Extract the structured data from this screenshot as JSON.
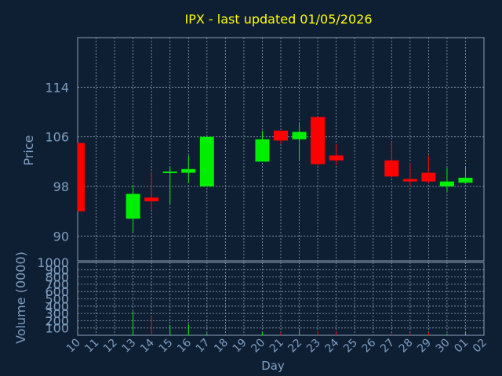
{
  "chart_data": {
    "type": "candlestick",
    "title": "IPX - last updated 01/05/2026",
    "ylabel": "Price",
    "volume_ylabel": "Volume (0000)",
    "xlabel": "Day",
    "ylim": [
      86,
      122
    ],
    "yticks": [
      "90",
      "98",
      "106",
      "114"
    ],
    "volume_ylim": [
      0,
      1000
    ],
    "volume_yticks": [
      "100",
      "200",
      "300",
      "400",
      "500",
      "600",
      "700",
      "800",
      "900",
      "1000"
    ],
    "grid": true,
    "categories": [
      "10",
      "11",
      "12",
      "13",
      "14",
      "15",
      "16",
      "17",
      "18",
      "19",
      "20",
      "21",
      "22",
      "23",
      "24",
      "25",
      "26",
      "27",
      "28",
      "29",
      "30",
      "01",
      "02"
    ],
    "candles": [
      {
        "day": "10",
        "open": 105.0,
        "high": 105.0,
        "low": 94.0,
        "close": 94.0,
        "volume": 0
      },
      {
        "day": "13",
        "open": 92.8,
        "high": 98.2,
        "low": 90.6,
        "close": 96.8,
        "volume": 330
      },
      {
        "day": "14",
        "open": 96.2,
        "high": 100.2,
        "low": 94.2,
        "close": 95.6,
        "volume": 260
      },
      {
        "day": "15",
        "open": 100.2,
        "high": 101.2,
        "low": 95.2,
        "close": 100.4,
        "volume": 140
      },
      {
        "day": "16",
        "open": 100.2,
        "high": 103.0,
        "low": 98.6,
        "close": 100.8,
        "volume": 150
      },
      {
        "day": "17",
        "open": 98.0,
        "high": 106.0,
        "low": 98.0,
        "close": 106.0,
        "volume": 30
      },
      {
        "day": "20",
        "open": 102.0,
        "high": 107.0,
        "low": 102.0,
        "close": 105.6,
        "volume": 40
      },
      {
        "day": "21",
        "open": 107.0,
        "high": 107.0,
        "low": 104.8,
        "close": 105.4,
        "volume": 40
      },
      {
        "day": "22",
        "open": 105.6,
        "high": 108.2,
        "low": 102.2,
        "close": 106.8,
        "volume": 80
      },
      {
        "day": "23",
        "open": 109.2,
        "high": 109.2,
        "low": 101.4,
        "close": 101.6,
        "volume": 60
      },
      {
        "day": "24",
        "open": 103.0,
        "high": 104.8,
        "low": 101.4,
        "close": 102.2,
        "volume": 50
      },
      {
        "day": "27",
        "open": 102.2,
        "high": 105.2,
        "low": 99.4,
        "close": 99.6,
        "volume": 30
      },
      {
        "day": "28",
        "open": 99.2,
        "high": 101.8,
        "low": 98.0,
        "close": 98.8,
        "volume": 30
      },
      {
        "day": "29",
        "open": 100.2,
        "high": 103.0,
        "low": 98.6,
        "close": 98.8,
        "volume": 40
      },
      {
        "day": "30",
        "open": 98.0,
        "high": 101.0,
        "low": 97.2,
        "close": 98.8,
        "volume": 20
      },
      {
        "day": "01",
        "open": 98.6,
        "high": 101.2,
        "low": 98.4,
        "close": 99.4,
        "volume": 50
      }
    ],
    "colors": {
      "up": "#00ee00",
      "down": "#ff0000",
      "background": "#0f1f33",
      "grid": "#8aa0b8",
      "axis_text": "#7f9fc3",
      "title": "#ffff00"
    }
  }
}
